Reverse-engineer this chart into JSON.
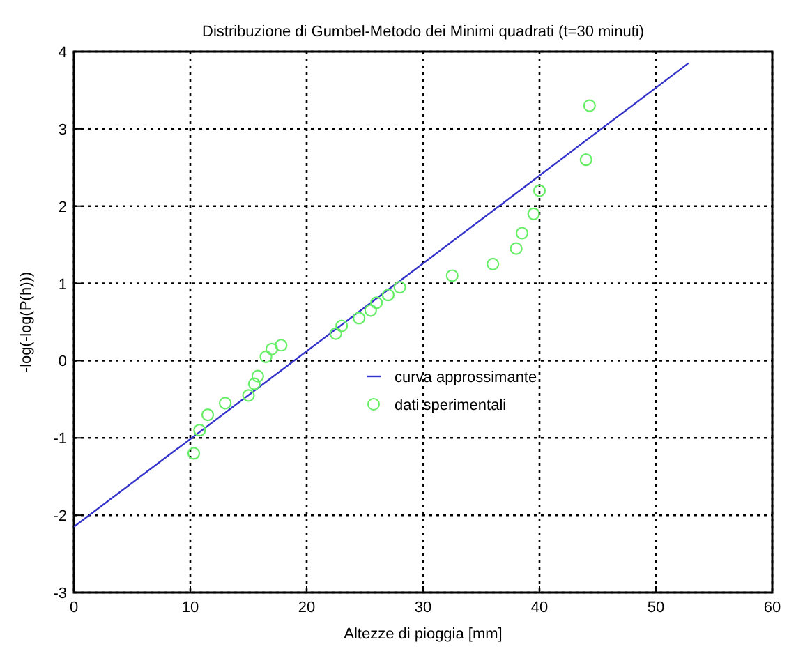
{
  "chart_data": {
    "type": "scatter",
    "title": "Distribuzione di Gumbel-Metodo dei Minimi quadrati (t=30 minuti)",
    "xlabel": "Altezze di pioggia [mm]",
    "ylabel": "-log(-log(P(h)))",
    "xlim": [
      0,
      60
    ],
    "ylim": [
      -3,
      4
    ],
    "xticks": [
      0,
      10,
      20,
      30,
      40,
      50,
      60
    ],
    "yticks": [
      -3,
      -2,
      -1,
      0,
      1,
      2,
      3,
      4
    ],
    "grid": true,
    "legend": "center",
    "series": [
      {
        "name": "curva approssimante",
        "type": "line",
        "color": "#3333cc",
        "marker": "none",
        "line_style": "solid",
        "x": [
          0,
          52.8
        ],
        "values": [
          -2.15,
          3.85
        ]
      },
      {
        "name": "dati sperimentali",
        "color": "#66ee66",
        "marker": "circle",
        "x": [
          10.3,
          10.8,
          11.5,
          13,
          15,
          15.5,
          15.8,
          16.5,
          17,
          17.8,
          22.5,
          23,
          24.5,
          25.5,
          26,
          27,
          28,
          32.5,
          36,
          38,
          38.5,
          39.5,
          40,
          44,
          44.3
        ],
        "values": [
          -1.2,
          -0.9,
          -0.7,
          -0.55,
          -0.45,
          -0.3,
          -0.2,
          0.05,
          0.15,
          0.2,
          0.35,
          0.45,
          0.55,
          0.65,
          0.75,
          0.85,
          0.95,
          1.1,
          1.25,
          1.45,
          1.65,
          1.9,
          2.2,
          2.6,
          3.3
        ]
      }
    ]
  }
}
